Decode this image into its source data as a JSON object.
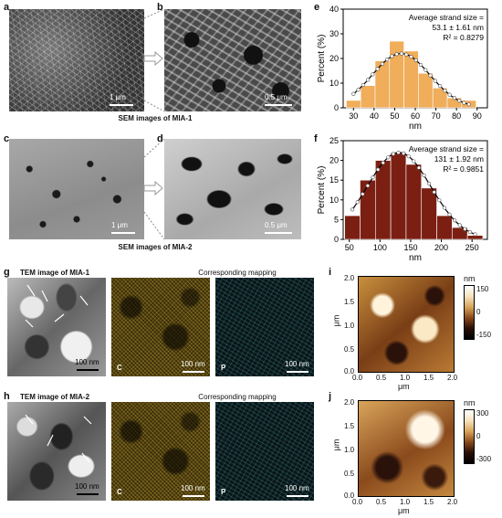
{
  "panels": {
    "a": "a",
    "b": "b",
    "c": "c",
    "d": "d",
    "e": "e",
    "f": "f",
    "g": "g",
    "h": "h",
    "i": "i",
    "j": "j"
  },
  "sem_row1": {
    "caption_prefix": "SEM images of MIA-",
    "caption_num": "1",
    "scale_a": "1 μm",
    "scale_b": "0.5 μm"
  },
  "sem_row2": {
    "caption_prefix": "SEM images of MIA-",
    "caption_num": "2",
    "scale_c": "1 μm",
    "scale_d": "0.5 μm"
  },
  "tem_row1": {
    "header_prefix": "TEM image of MIA-",
    "header_num": "1",
    "mapping_header": "Corresponding  mapping",
    "scale_tem": "100 nm",
    "scale_c": "100 nm",
    "scale_p": "100 nm",
    "label_c": "C",
    "label_p": "P"
  },
  "tem_row2": {
    "header_prefix": "TEM image of MIA-",
    "header_num": "2",
    "mapping_header": "Corresponding  mapping",
    "scale_tem": "100 nm",
    "scale_c": "100 nm",
    "scale_p": "100 nm",
    "label_c": "C",
    "label_p": "P"
  },
  "afm_i": {
    "ylabel": "μm",
    "xlabel": "μm",
    "ticks": [
      "0.0",
      "0.5",
      "1.0",
      "1.5",
      "2.0"
    ],
    "cbar_unit": "nm",
    "cbar_ticks": [
      "150",
      "0",
      "-150"
    ]
  },
  "afm_j": {
    "ylabel": "μm",
    "xlabel": "μm",
    "ticks": [
      "0.0",
      "0.5",
      "1.0",
      "1.5",
      "2.0"
    ],
    "cbar_unit": "nm",
    "cbar_ticks": [
      "300",
      "0",
      "-300"
    ]
  },
  "chart_data": [
    {
      "type": "bar",
      "panel": "e",
      "bar_color": "#f0ad5a",
      "x_centers": [
        30,
        37,
        44,
        51,
        58,
        65,
        72,
        79,
        86
      ],
      "values": [
        3,
        9,
        19,
        27,
        23,
        14,
        8,
        4,
        3
      ],
      "fit_curve": "gaussian",
      "fit_mu": 53.1,
      "fit_sigma": 14,
      "fit_amp": 22,
      "xlabel": "nm",
      "ylabel": "Percent (%)",
      "xlim": [
        25,
        95
      ],
      "ylim": [
        0,
        40
      ],
      "xticks": [
        30,
        40,
        50,
        60,
        70,
        80,
        90
      ],
      "yticks": [
        0,
        10,
        20,
        30,
        40
      ],
      "annotation": [
        "Average strand size =",
        "53.1 ± 1.61 nm",
        "R² = 0.8279"
      ]
    },
    {
      "type": "bar",
      "panel": "f",
      "bar_color": "#7b1f12",
      "x_centers": [
        55,
        80,
        105,
        130,
        155,
        180,
        205,
        230,
        255
      ],
      "values": [
        6,
        15,
        20,
        22,
        19,
        13,
        6,
        3,
        1
      ],
      "fit_curve": "gaussian",
      "fit_mu": 131,
      "fit_sigma": 52,
      "fit_amp": 22,
      "xlabel": "nm",
      "ylabel": "Percent (%)",
      "xlim": [
        40,
        275
      ],
      "ylim": [
        0,
        25
      ],
      "xticks": [
        50,
        100,
        150,
        200,
        250
      ],
      "yticks": [
        0,
        5,
        10,
        15,
        20,
        25
      ],
      "annotation": [
        "Average strand size =",
        "131 ± 1.92 nm",
        "R² = 0.9851"
      ]
    }
  ]
}
